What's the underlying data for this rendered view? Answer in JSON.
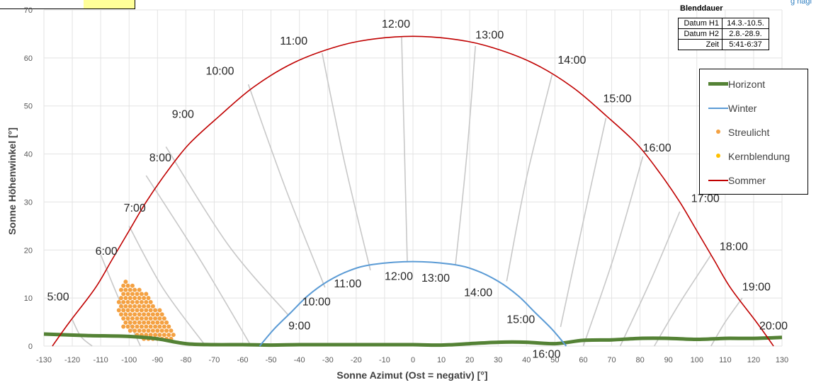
{
  "header": {
    "link_text": "g nagl"
  },
  "blenddauer": {
    "title": "Blenddauer",
    "rows": [
      {
        "key": "Datum H1",
        "value": "14.3.-10.5."
      },
      {
        "key": "Datum H2",
        "value": "2.8.-28.9."
      },
      {
        "key": "Zeit",
        "value": "5:41-6:37"
      }
    ]
  },
  "legend": {
    "items": [
      {
        "label": "Horizont",
        "color": "#548235",
        "kind": "thick-line"
      },
      {
        "label": "Winter",
        "color": "#5b9bd5",
        "kind": "line"
      },
      {
        "label": "Streulicht",
        "color": "#f4a142",
        "kind": "dot"
      },
      {
        "label": "Kernblendung",
        "color": "#ffc000",
        "kind": "dot"
      },
      {
        "label": "Sommer",
        "color": "#c00000",
        "kind": "line"
      }
    ]
  },
  "chart_data": {
    "type": "scatter",
    "xlabel": "Sonne Azimut (Ost = negativ) [°]",
    "ylabel": "Sonne Höhenwinkel [°]",
    "xlim": [
      -130,
      130
    ],
    "ylim": [
      0,
      70
    ],
    "x_ticks": [
      -130,
      -120,
      -110,
      -100,
      -90,
      -80,
      -70,
      -60,
      -50,
      -40,
      -30,
      -20,
      -10,
      0,
      10,
      20,
      30,
      40,
      50,
      60,
      70,
      80,
      90,
      100,
      110,
      120,
      130
    ],
    "y_ticks": [
      0,
      10,
      20,
      30,
      40,
      50,
      60,
      70
    ],
    "grid": true,
    "colors": {
      "sommer": "#c00000",
      "winter": "#5b9bd5",
      "horizont": "#548235",
      "hour_lines": "#c8c8c8",
      "streulicht": "#f4a142",
      "kernblendung": "#ffc000"
    },
    "sommer": [
      [
        -127,
        0
      ],
      [
        -121,
        5
      ],
      [
        -112,
        12
      ],
      [
        -106,
        18
      ],
      [
        -100,
        24
      ],
      [
        -94,
        30
      ],
      [
        -87,
        36
      ],
      [
        -79,
        42
      ],
      [
        -68,
        48
      ],
      [
        -56,
        54
      ],
      [
        -42,
        59
      ],
      [
        -26,
        62.5
      ],
      [
        -13,
        64
      ],
      [
        0,
        64.5
      ],
      [
        13,
        64
      ],
      [
        26,
        62.5
      ],
      [
        42,
        59
      ],
      [
        56,
        54
      ],
      [
        68,
        48
      ],
      [
        79,
        42
      ],
      [
        87,
        36
      ],
      [
        94,
        30
      ],
      [
        100,
        24
      ],
      [
        106,
        18
      ],
      [
        112,
        12
      ],
      [
        121,
        5
      ],
      [
        127,
        0
      ]
    ],
    "winter": [
      [
        -54,
        0
      ],
      [
        -49,
        3.5
      ],
      [
        -43,
        7
      ],
      [
        -37,
        10.5
      ],
      [
        -30,
        13.5
      ],
      [
        -22,
        15.8
      ],
      [
        -14,
        17
      ],
      [
        0,
        17.6
      ],
      [
        14,
        17
      ],
      [
        22,
        15.8
      ],
      [
        30,
        13.5
      ],
      [
        37,
        10.5
      ],
      [
        43,
        7
      ],
      [
        49,
        3.5
      ],
      [
        54,
        0
      ]
    ],
    "horizont": [
      [
        -130,
        2.5
      ],
      [
        -115,
        2.2
      ],
      [
        -100,
        2
      ],
      [
        -90,
        1.5
      ],
      [
        -80,
        0.5
      ],
      [
        -70,
        0.3
      ],
      [
        -60,
        0.3
      ],
      [
        -50,
        0.2
      ],
      [
        -40,
        0.3
      ],
      [
        -30,
        0.3
      ],
      [
        -20,
        0.3
      ],
      [
        -10,
        0.3
      ],
      [
        0,
        0.3
      ],
      [
        10,
        0.2
      ],
      [
        20,
        0.5
      ],
      [
        30,
        0.8
      ],
      [
        40,
        0.8
      ],
      [
        50,
        0.5
      ],
      [
        60,
        1.2
      ],
      [
        70,
        1.3
      ],
      [
        80,
        1.6
      ],
      [
        90,
        1.6
      ],
      [
        100,
        1.4
      ],
      [
        110,
        1.6
      ],
      [
        120,
        1.6
      ],
      [
        130,
        1.8
      ]
    ],
    "hour_lines": [
      {
        "label": "5:00",
        "points": [
          [
            -120,
            5.5
          ],
          [
            -117,
            2
          ],
          [
            -113,
            0
          ]
        ]
      },
      {
        "label": "6:00",
        "points": [
          [
            -110,
            19
          ],
          [
            -103,
            9
          ],
          [
            -96,
            0
          ]
        ]
      },
      {
        "label": "7:00",
        "points": [
          [
            -100,
            25
          ],
          [
            -88,
            12
          ],
          [
            -73,
            0
          ]
        ]
      },
      {
        "label": "8:00",
        "points": [
          [
            -94,
            35.5
          ],
          [
            -75,
            18
          ],
          [
            -57,
            0
          ]
        ]
      },
      {
        "label": "9:00",
        "points": [
          [
            -87,
            41.5
          ],
          [
            -65,
            21
          ],
          [
            -44,
            6.5
          ]
        ]
      },
      {
        "label": "10:00",
        "points": [
          [
            -58,
            54.5
          ],
          [
            -45,
            33
          ],
          [
            -31,
            12.2
          ]
        ]
      },
      {
        "label": "11:00",
        "points": [
          [
            -32,
            61
          ],
          [
            -24,
            38
          ],
          [
            -15,
            15.8
          ]
        ]
      },
      {
        "label": "12:00",
        "points": [
          [
            -4,
            64.3
          ],
          [
            -3,
            41
          ],
          [
            -2,
            17.5
          ]
        ]
      },
      {
        "label": "13:00",
        "points": [
          [
            22,
            62.5
          ],
          [
            19,
            40
          ],
          [
            15,
            17
          ]
        ]
      },
      {
        "label": "14:00",
        "points": [
          [
            49,
            56.5
          ],
          [
            40,
            35
          ],
          [
            33,
            13.5
          ]
        ]
      },
      {
        "label": "15:00",
        "points": [
          [
            68,
            47.5
          ],
          [
            60,
            26
          ],
          [
            52,
            4
          ]
        ]
      },
      {
        "label": "16:00",
        "points": [
          [
            81,
            39.5
          ],
          [
            71,
            19
          ],
          [
            60,
            0
          ]
        ]
      },
      {
        "label": "17:00",
        "points": [
          [
            94,
            28
          ],
          [
            84,
            14
          ],
          [
            73,
            0
          ]
        ]
      },
      {
        "label": "18:00",
        "points": [
          [
            105,
            19
          ],
          [
            94,
            9
          ],
          [
            85,
            0
          ]
        ]
      },
      {
        "label": "19:00",
        "points": [
          [
            116,
            10
          ],
          [
            110,
            5
          ],
          [
            105,
            0
          ]
        ]
      }
    ],
    "time_labels": [
      {
        "text": "5:00",
        "x": -125,
        "y": 9.5,
        "curve": "sommer"
      },
      {
        "text": "6:00",
        "x": -108,
        "y": 19,
        "curve": "sommer"
      },
      {
        "text": "7:00",
        "x": -98,
        "y": 28,
        "curve": "sommer"
      },
      {
        "text": "8:00",
        "x": -89,
        "y": 38.5,
        "curve": "sommer"
      },
      {
        "text": "9:00",
        "x": -81,
        "y": 47.5,
        "curve": "sommer"
      },
      {
        "text": "10:00",
        "x": -68,
        "y": 56.5,
        "curve": "sommer"
      },
      {
        "text": "11:00",
        "x": -42,
        "y": 62.8,
        "curve": "sommer"
      },
      {
        "text": "12:00",
        "x": -6,
        "y": 66.3,
        "curve": "sommer"
      },
      {
        "text": "13:00",
        "x": 27,
        "y": 64,
        "curve": "sommer"
      },
      {
        "text": "14:00",
        "x": 56,
        "y": 58.8,
        "curve": "sommer"
      },
      {
        "text": "15:00",
        "x": 72,
        "y": 50.8,
        "curve": "sommer"
      },
      {
        "text": "16:00",
        "x": 86,
        "y": 40.5,
        "curve": "sommer"
      },
      {
        "text": "17:00",
        "x": 103,
        "y": 30,
        "curve": "sommer"
      },
      {
        "text": "18:00",
        "x": 113,
        "y": 20,
        "curve": "sommer"
      },
      {
        "text": "19:00",
        "x": 121,
        "y": 11.6,
        "curve": "sommer"
      },
      {
        "text": "20:00",
        "x": 127,
        "y": 3.5,
        "curve": "sommer"
      },
      {
        "text": "9:00",
        "x": -40,
        "y": 3.5,
        "curve": "winter"
      },
      {
        "text": "10:00",
        "x": -34,
        "y": 8.5,
        "curve": "winter"
      },
      {
        "text": "11:00",
        "x": -23,
        "y": 12.2,
        "curve": "winter"
      },
      {
        "text": "12:00",
        "x": -5,
        "y": 13.8,
        "curve": "winter"
      },
      {
        "text": "13:00",
        "x": 8,
        "y": 13.4,
        "curve": "winter"
      },
      {
        "text": "14:00",
        "x": 23,
        "y": 10.4,
        "curve": "winter"
      },
      {
        "text": "15:00",
        "x": 38,
        "y": 4.8,
        "curve": "winter"
      },
      {
        "text": "16:00",
        "x": 47,
        "y": -2.4,
        "curve": "winter"
      }
    ],
    "streulicht_region": {
      "polygon": [
        [
          -102,
          13.5
        ],
        [
          -100,
          13.5
        ],
        [
          -95,
          11.5
        ],
        [
          -88,
          7
        ],
        [
          -84,
          3
        ],
        [
          -84,
          1.5
        ],
        [
          -96,
          1.5
        ],
        [
          -102,
          4
        ],
        [
          -104,
          8
        ],
        [
          -103,
          12
        ]
      ],
      "spacing_x": 1.6,
      "spacing_y": 0.85
    }
  }
}
